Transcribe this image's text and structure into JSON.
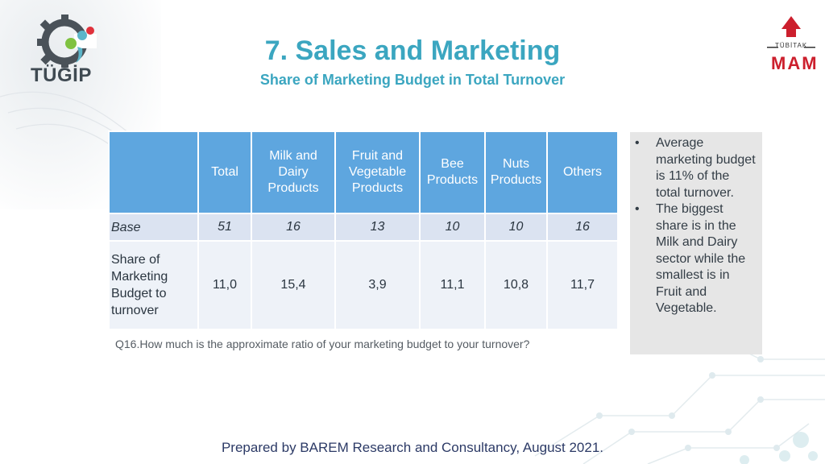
{
  "slide": {
    "title": "7. Sales and Marketing",
    "subtitle": "Share of Marketing Budget in Total Turnover"
  },
  "logos": {
    "left_text": "TÜGİP",
    "right_small": "TÜBİTAK",
    "right_big": "MAM"
  },
  "table": {
    "headers": [
      "",
      "Total",
      "Milk and Dairy Products",
      "Fruit and Vegetable Products",
      "Bee Products",
      "Nuts Products",
      "Others"
    ],
    "rows": [
      {
        "label": "Base",
        "values": [
          "51",
          "16",
          "13",
          "10",
          "10",
          "16"
        ]
      },
      {
        "label": "Share of Marketing Budget to turnover",
        "values": [
          "11,0",
          "15,4",
          "3,9",
          "11,1",
          "10,8",
          "11,7"
        ]
      }
    ]
  },
  "question": "Q16.How much  is the approximate ratio of your marketing budget to your turnover?",
  "notes": [
    "Average marketing budget is 11% of the total turnover.",
    "The biggest share is in the Milk and Dairy sector while the smallest is in Fruit and Vegetable."
  ],
  "footer": "Prepared by BAREM Research and Consultancy, August 2021."
}
